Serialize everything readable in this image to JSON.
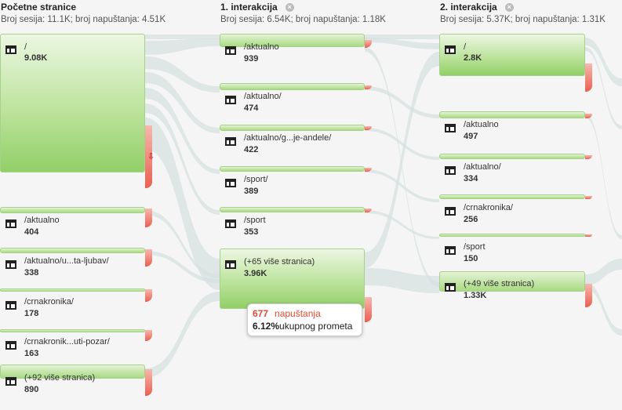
{
  "columns": [
    {
      "title": "Početne stranice",
      "stats": "Broj sesija: 11.1K; broj napuštanja: 4.51K",
      "nodes": [
        {
          "label": "/",
          "count": "9.08K"
        },
        {
          "label": "/aktualno",
          "count": "404"
        },
        {
          "label": "/aktualno/u...ta-ljubav/",
          "count": "338"
        },
        {
          "label": "/crnakronika/",
          "count": "178"
        },
        {
          "label": "/crnakronik...uti-pozar/",
          "count": "163"
        },
        {
          "label": "(+92 više stranica)",
          "count": "890"
        }
      ]
    },
    {
      "title": "1. interakcija",
      "stats": "Broj sesija: 6.54K; broj napuštanja: 1.18K",
      "nodes": [
        {
          "label": "/aktualno",
          "count": "939"
        },
        {
          "label": "/aktualno/",
          "count": "474"
        },
        {
          "label": "/aktualno/g...je-andele/",
          "count": "422"
        },
        {
          "label": "/sport/",
          "count": "389"
        },
        {
          "label": "/sport",
          "count": "353"
        },
        {
          "label": "(+65 više stranica)",
          "count": "3.96K"
        }
      ]
    },
    {
      "title": "2. interakcija",
      "stats": "Broj sesija: 5.37K; broj napuštanja: 1.31K",
      "nodes": [
        {
          "label": "/",
          "count": "2.8K"
        },
        {
          "label": "/aktualno",
          "count": "497"
        },
        {
          "label": "/aktualno/",
          "count": "334"
        },
        {
          "label": "/crnakronika/",
          "count": "256"
        },
        {
          "label": "/sport",
          "count": "150"
        },
        {
          "label": "(+49 više stranica)",
          "count": "1.33K"
        }
      ]
    }
  ],
  "tooltip": {
    "dropoffs": "677",
    "dropoffs_label": "napuštanja",
    "percent": "6.12%",
    "percent_label": "ukupnog prometa"
  },
  "colors": {
    "node_fill": "#a9da82",
    "node_border": "#a6d18a",
    "dropoff": "#ea6050",
    "flow": "#d5e0e0"
  },
  "icons": {
    "close": "close-icon",
    "page": "page-icon",
    "dropoff_arrow": "down-arrow-icon"
  }
}
